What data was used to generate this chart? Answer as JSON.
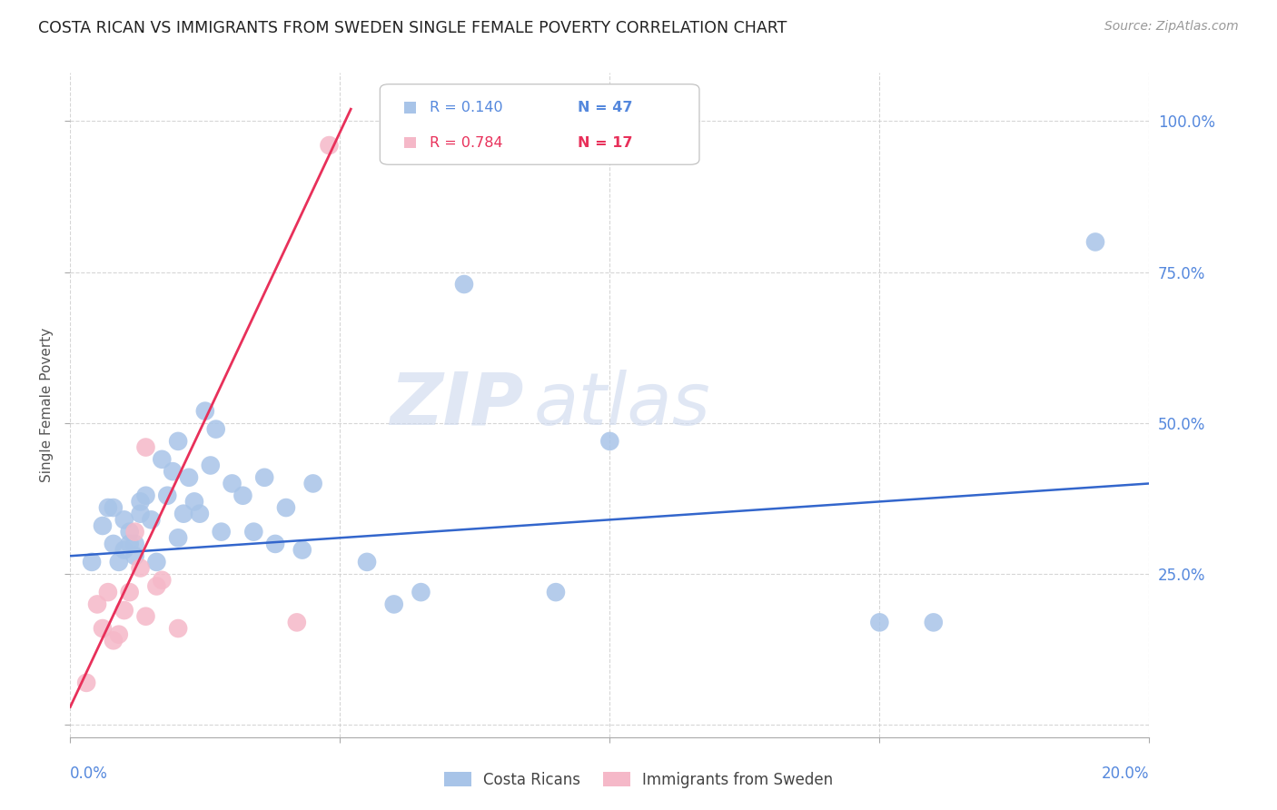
{
  "title": "COSTA RICAN VS IMMIGRANTS FROM SWEDEN SINGLE FEMALE POVERTY CORRELATION CHART",
  "source": "Source: ZipAtlas.com",
  "ylabel": "Single Female Poverty",
  "xlim": [
    0.0,
    0.2
  ],
  "ylim": [
    -0.02,
    1.08
  ],
  "watermark_zip": "ZIP",
  "watermark_atlas": "atlas",
  "blue_color": "#a8c4e8",
  "pink_color": "#f5b8c8",
  "line_blue": "#3366cc",
  "line_pink": "#e8305a",
  "grid_color": "#cccccc",
  "axis_label_color": "#5588dd",
  "legend_r1": "R = 0.140",
  "legend_n1": "N = 47",
  "legend_r2": "R = 0.784",
  "legend_n2": "N = 17",
  "blue_scatter_x": [
    0.004,
    0.006,
    0.007,
    0.008,
    0.008,
    0.009,
    0.01,
    0.01,
    0.011,
    0.011,
    0.012,
    0.012,
    0.013,
    0.013,
    0.014,
    0.015,
    0.016,
    0.017,
    0.018,
    0.019,
    0.02,
    0.02,
    0.021,
    0.022,
    0.023,
    0.024,
    0.025,
    0.026,
    0.027,
    0.028,
    0.03,
    0.032,
    0.034,
    0.036,
    0.038,
    0.04,
    0.043,
    0.045,
    0.055,
    0.06,
    0.065,
    0.073,
    0.09,
    0.1,
    0.15,
    0.16,
    0.19
  ],
  "blue_scatter_y": [
    0.27,
    0.33,
    0.36,
    0.3,
    0.36,
    0.27,
    0.29,
    0.34,
    0.32,
    0.3,
    0.3,
    0.28,
    0.35,
    0.37,
    0.38,
    0.34,
    0.27,
    0.44,
    0.38,
    0.42,
    0.47,
    0.31,
    0.35,
    0.41,
    0.37,
    0.35,
    0.52,
    0.43,
    0.49,
    0.32,
    0.4,
    0.38,
    0.32,
    0.41,
    0.3,
    0.36,
    0.29,
    0.4,
    0.27,
    0.2,
    0.22,
    0.73,
    0.22,
    0.47,
    0.17,
    0.17,
    0.8
  ],
  "pink_scatter_x": [
    0.003,
    0.005,
    0.006,
    0.007,
    0.008,
    0.009,
    0.01,
    0.011,
    0.012,
    0.013,
    0.014,
    0.014,
    0.016,
    0.017,
    0.02,
    0.042,
    0.048
  ],
  "pink_scatter_y": [
    0.07,
    0.2,
    0.16,
    0.22,
    0.14,
    0.15,
    0.19,
    0.22,
    0.32,
    0.26,
    0.18,
    0.46,
    0.23,
    0.24,
    0.16,
    0.17,
    0.96
  ],
  "blue_trend_x": [
    0.0,
    0.2
  ],
  "blue_trend_y": [
    0.28,
    0.4
  ],
  "pink_trend_x": [
    0.0,
    0.052
  ],
  "pink_trend_y": [
    0.03,
    1.02
  ]
}
